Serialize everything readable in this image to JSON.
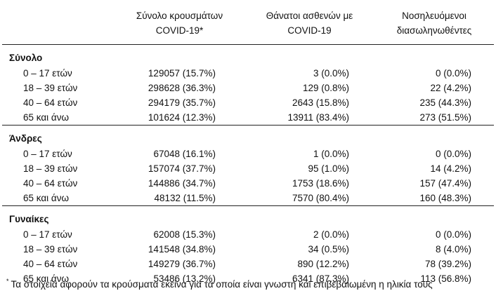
{
  "headers": {
    "col1": "Σύνολο κρουσμάτων\nCOVID-19*",
    "col2": "Θάνατοι ασθενών με\nCOVID-19",
    "col3": "Νοσηλευόμενοι\nδιασωληνωθέντες"
  },
  "groups": [
    {
      "name": "Σύνολο",
      "rows": [
        {
          "label": "0 – 17 ετών",
          "cases": "129057 (15.7%)",
          "deaths": "3 (0.0%)",
          "icu": "0 (0.0%)"
        },
        {
          "label": "18 – 39 ετών",
          "cases": "298628 (36.3%)",
          "deaths": "129 (0.8%)",
          "icu": "22 (4.2%)"
        },
        {
          "label": "40 – 64 ετών",
          "cases": "294179 (35.7%)",
          "deaths": "2643 (15.8%)",
          "icu": "235 (44.3%)"
        },
        {
          "label": "65 και άνω",
          "cases": "101624 (12.3%)",
          "deaths": "13911 (83.4%)",
          "icu": "273 (51.5%)"
        }
      ]
    },
    {
      "name": "Άνδρες",
      "rows": [
        {
          "label": "0 – 17 ετών",
          "cases": "67048 (16.1%)",
          "deaths": "1 (0.0%)",
          "icu": "0 (0.0%)"
        },
        {
          "label": "18 – 39 ετών",
          "cases": "157074 (37.7%)",
          "deaths": "95 (1.0%)",
          "icu": "14 (4.2%)"
        },
        {
          "label": "40 – 64 ετών",
          "cases": "144886 (34.7%)",
          "deaths": "1753 (18.6%)",
          "icu": "157 (47.4%)"
        },
        {
          "label": "65 και άνω",
          "cases": "48132 (11.5%)",
          "deaths": "7570 (80.4%)",
          "icu": "160 (48.3%)"
        }
      ]
    },
    {
      "name": "Γυναίκες",
      "rows": [
        {
          "label": "0 – 17 ετών",
          "cases": "62008 (15.3%)",
          "deaths": "2 (0.0%)",
          "icu": "0 (0.0%)"
        },
        {
          "label": "18 – 39 ετών",
          "cases": "141548 (34.8%)",
          "deaths": "34 (0.5%)",
          "icu": "8 (4.0%)"
        },
        {
          "label": "40 – 64 ετών",
          "cases": "149279 (36.7%)",
          "deaths": "890 (12.2%)",
          "icu": "78 (39.2%)"
        },
        {
          "label": "65 και άνω",
          "cases": "53486 (13.2%)",
          "deaths": "6341 (87.3%)",
          "icu": "113 (56.8%)"
        }
      ]
    }
  ],
  "footnote": {
    "marker": "*",
    "text": "Τα στοιχεία αφορούν τα κρούσματα εκείνα για τα οποία είναι γνωστή και επιβεβαιωμένη η ηλικία τους"
  }
}
